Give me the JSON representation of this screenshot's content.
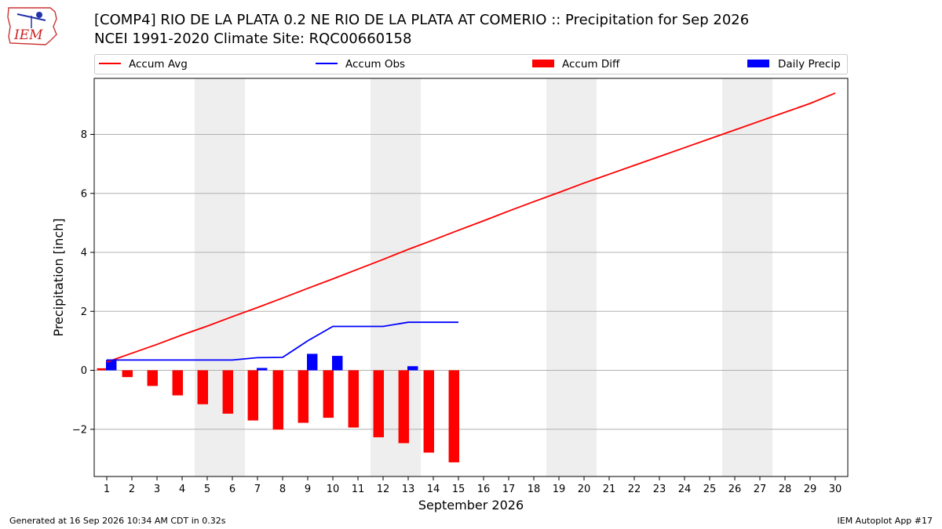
{
  "footer": {
    "generated": "Generated at 16 Sep 2026 10:34 AM CDT in 0.32s",
    "app": "IEM Autoplot App #17"
  },
  "logo": {
    "text": "IEM"
  },
  "colors": {
    "avg": "#ff0000",
    "obs": "#0000ff",
    "diff": "#ff0000",
    "daily": "#0000ff",
    "weekend": "#eeeeee",
    "grid": "#b0b0b0"
  },
  "chart_data": {
    "type": "bar",
    "title": "[COMP4] RIO DE LA PLATA 0.2 NE RIO DE LA PLATA AT COMERIO :: Precipitation for Sep 2026",
    "subtitle": "NCEI 1991-2020 Climate Site: RQC00660158",
    "xlabel": "September 2026",
    "ylabel": "Precipitation [inch]",
    "xlim": [
      0.5,
      30.5
    ],
    "ylim": [
      -3.6,
      9.9
    ],
    "yticks": [
      -2,
      0,
      2,
      4,
      6,
      8
    ],
    "ytick_labels": [
      "−2",
      "0",
      "2",
      "4",
      "6",
      "8"
    ],
    "grid": "horizontal",
    "legend_placement": "top",
    "weekend_days": [
      5,
      6,
      12,
      13,
      19,
      20,
      26,
      27
    ],
    "x": [
      1,
      2,
      3,
      4,
      5,
      6,
      7,
      8,
      9,
      10,
      11,
      12,
      13,
      14,
      15,
      16,
      17,
      18,
      19,
      20,
      21,
      22,
      23,
      24,
      25,
      26,
      27,
      28,
      29,
      30
    ],
    "x_labels": [
      "1",
      "2",
      "3",
      "4",
      "5",
      "6",
      "7",
      "8",
      "9",
      "10",
      "11",
      "12",
      "13",
      "14",
      "15",
      "16",
      "17",
      "18",
      "19",
      "20",
      "21",
      "22",
      "23",
      "24",
      "25",
      "26",
      "27",
      "28",
      "29",
      "30"
    ],
    "series": [
      {
        "name": "Accum Avg",
        "kind": "line",
        "color": "#ff0000",
        "x": [
          1,
          2,
          3,
          4,
          5,
          6,
          7,
          8,
          9,
          10,
          11,
          12,
          13,
          14,
          15,
          16,
          17,
          18,
          19,
          20,
          21,
          22,
          23,
          24,
          25,
          26,
          27,
          28,
          29,
          30
        ],
        "values": [
          0.28,
          0.58,
          0.88,
          1.2,
          1.5,
          1.82,
          2.13,
          2.45,
          2.78,
          3.1,
          3.43,
          3.76,
          4.1,
          4.42,
          4.75,
          5.07,
          5.4,
          5.72,
          6.03,
          6.35,
          6.65,
          6.95,
          7.25,
          7.55,
          7.85,
          8.15,
          8.45,
          8.75,
          9.05,
          9.4
        ]
      },
      {
        "name": "Accum Obs",
        "kind": "line",
        "color": "#0000ff",
        "x": [
          1,
          2,
          3,
          4,
          5,
          6,
          7,
          8,
          9,
          10,
          11,
          12,
          13,
          14,
          15
        ],
        "values": [
          0.35,
          0.35,
          0.35,
          0.35,
          0.35,
          0.35,
          0.43,
          0.44,
          1.0,
          1.49,
          1.49,
          1.49,
          1.63,
          1.63,
          1.63
        ]
      },
      {
        "name": "Accum Diff",
        "kind": "bar",
        "color": "#ff0000",
        "x": [
          1,
          2,
          3,
          4,
          5,
          6,
          7,
          8,
          9,
          10,
          11,
          12,
          13,
          14,
          15
        ],
        "values": [
          0.07,
          -0.23,
          -0.53,
          -0.85,
          -1.15,
          -1.47,
          -1.7,
          -2.01,
          -1.78,
          -1.61,
          -1.94,
          -2.27,
          -2.47,
          -2.79,
          -3.12
        ]
      },
      {
        "name": "Daily Precip",
        "kind": "bar",
        "color": "#0000ff",
        "x": [
          1,
          2,
          3,
          4,
          5,
          6,
          7,
          8,
          9,
          10,
          11,
          12,
          13,
          14,
          15
        ],
        "values": [
          0.35,
          0,
          0,
          0,
          0,
          0,
          0.08,
          0,
          0.56,
          0.49,
          0,
          0,
          0.14,
          0,
          0
        ]
      }
    ]
  }
}
